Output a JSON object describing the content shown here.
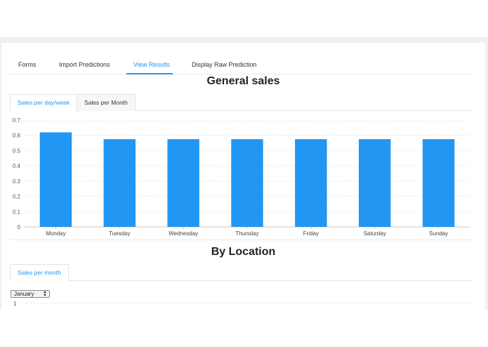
{
  "nav": {
    "tabs": [
      {
        "label": "Forms"
      },
      {
        "label": "Import Predictions"
      },
      {
        "label": "View Results"
      },
      {
        "label": "Display Raw Prediction"
      }
    ],
    "active": "View Results"
  },
  "general": {
    "title": "General sales",
    "tabs": [
      {
        "label": "Sales per day/week"
      },
      {
        "label": "Sales per Month"
      }
    ],
    "active": "Sales per day/week"
  },
  "chart_data": {
    "type": "bar",
    "categories": [
      "Monday",
      "Tuesday",
      "Wednesday",
      "Thursday",
      "Friday",
      "Saturday",
      "Sunday"
    ],
    "values": [
      0.62,
      0.575,
      0.575,
      0.575,
      0.575,
      0.575,
      0.575
    ],
    "yticks": [
      "0",
      "0.1",
      "0.2",
      "0.3",
      "0.4",
      "0.5",
      "0.6",
      "0.7"
    ],
    "ylim": [
      0,
      0.7
    ],
    "grid": true,
    "color": "#2196f3",
    "title": "",
    "xlabel": "",
    "ylabel": ""
  },
  "location": {
    "title": "By Location",
    "tabs": [
      {
        "label": "Sales per month"
      }
    ],
    "month_select": "January",
    "first_tick": "1"
  },
  "colors": {
    "accent": "#2196f3",
    "page_bg": "#eef0f4"
  }
}
